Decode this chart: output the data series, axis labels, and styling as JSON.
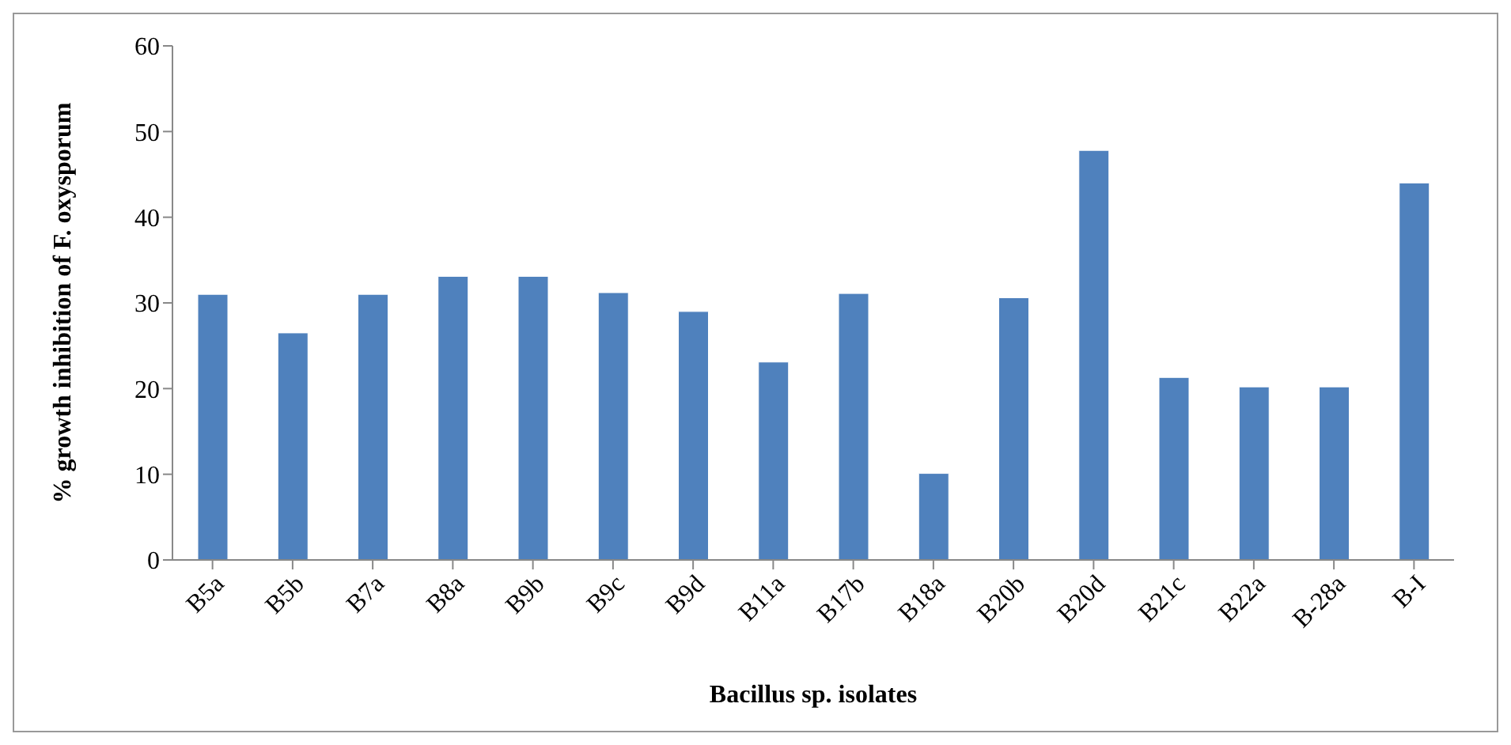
{
  "chart_data": {
    "type": "bar",
    "xlabel": "Bacillus sp. isolates",
    "ylabel": "% growth inhibition of F. oxysporum",
    "categories": [
      "B5a",
      "B5b",
      "B7a",
      "B8a",
      "B9b",
      "B9c",
      "B9d",
      "B11a",
      "B17b",
      "B18a",
      "B20b",
      "B20d",
      "B21c",
      "B22a",
      "B-28a",
      "B-I"
    ],
    "values": [
      31,
      26.5,
      31,
      33.1,
      33.1,
      31.2,
      29,
      23.1,
      31.1,
      10.1,
      30.6,
      47.8,
      21.3,
      20.2,
      20.2,
      44
    ],
    "color": "#4f81bd",
    "ylim": [
      0,
      60
    ],
    "yticks": [
      0,
      10,
      20,
      30,
      40,
      50,
      60
    ],
    "grid": false,
    "legend": false
  }
}
